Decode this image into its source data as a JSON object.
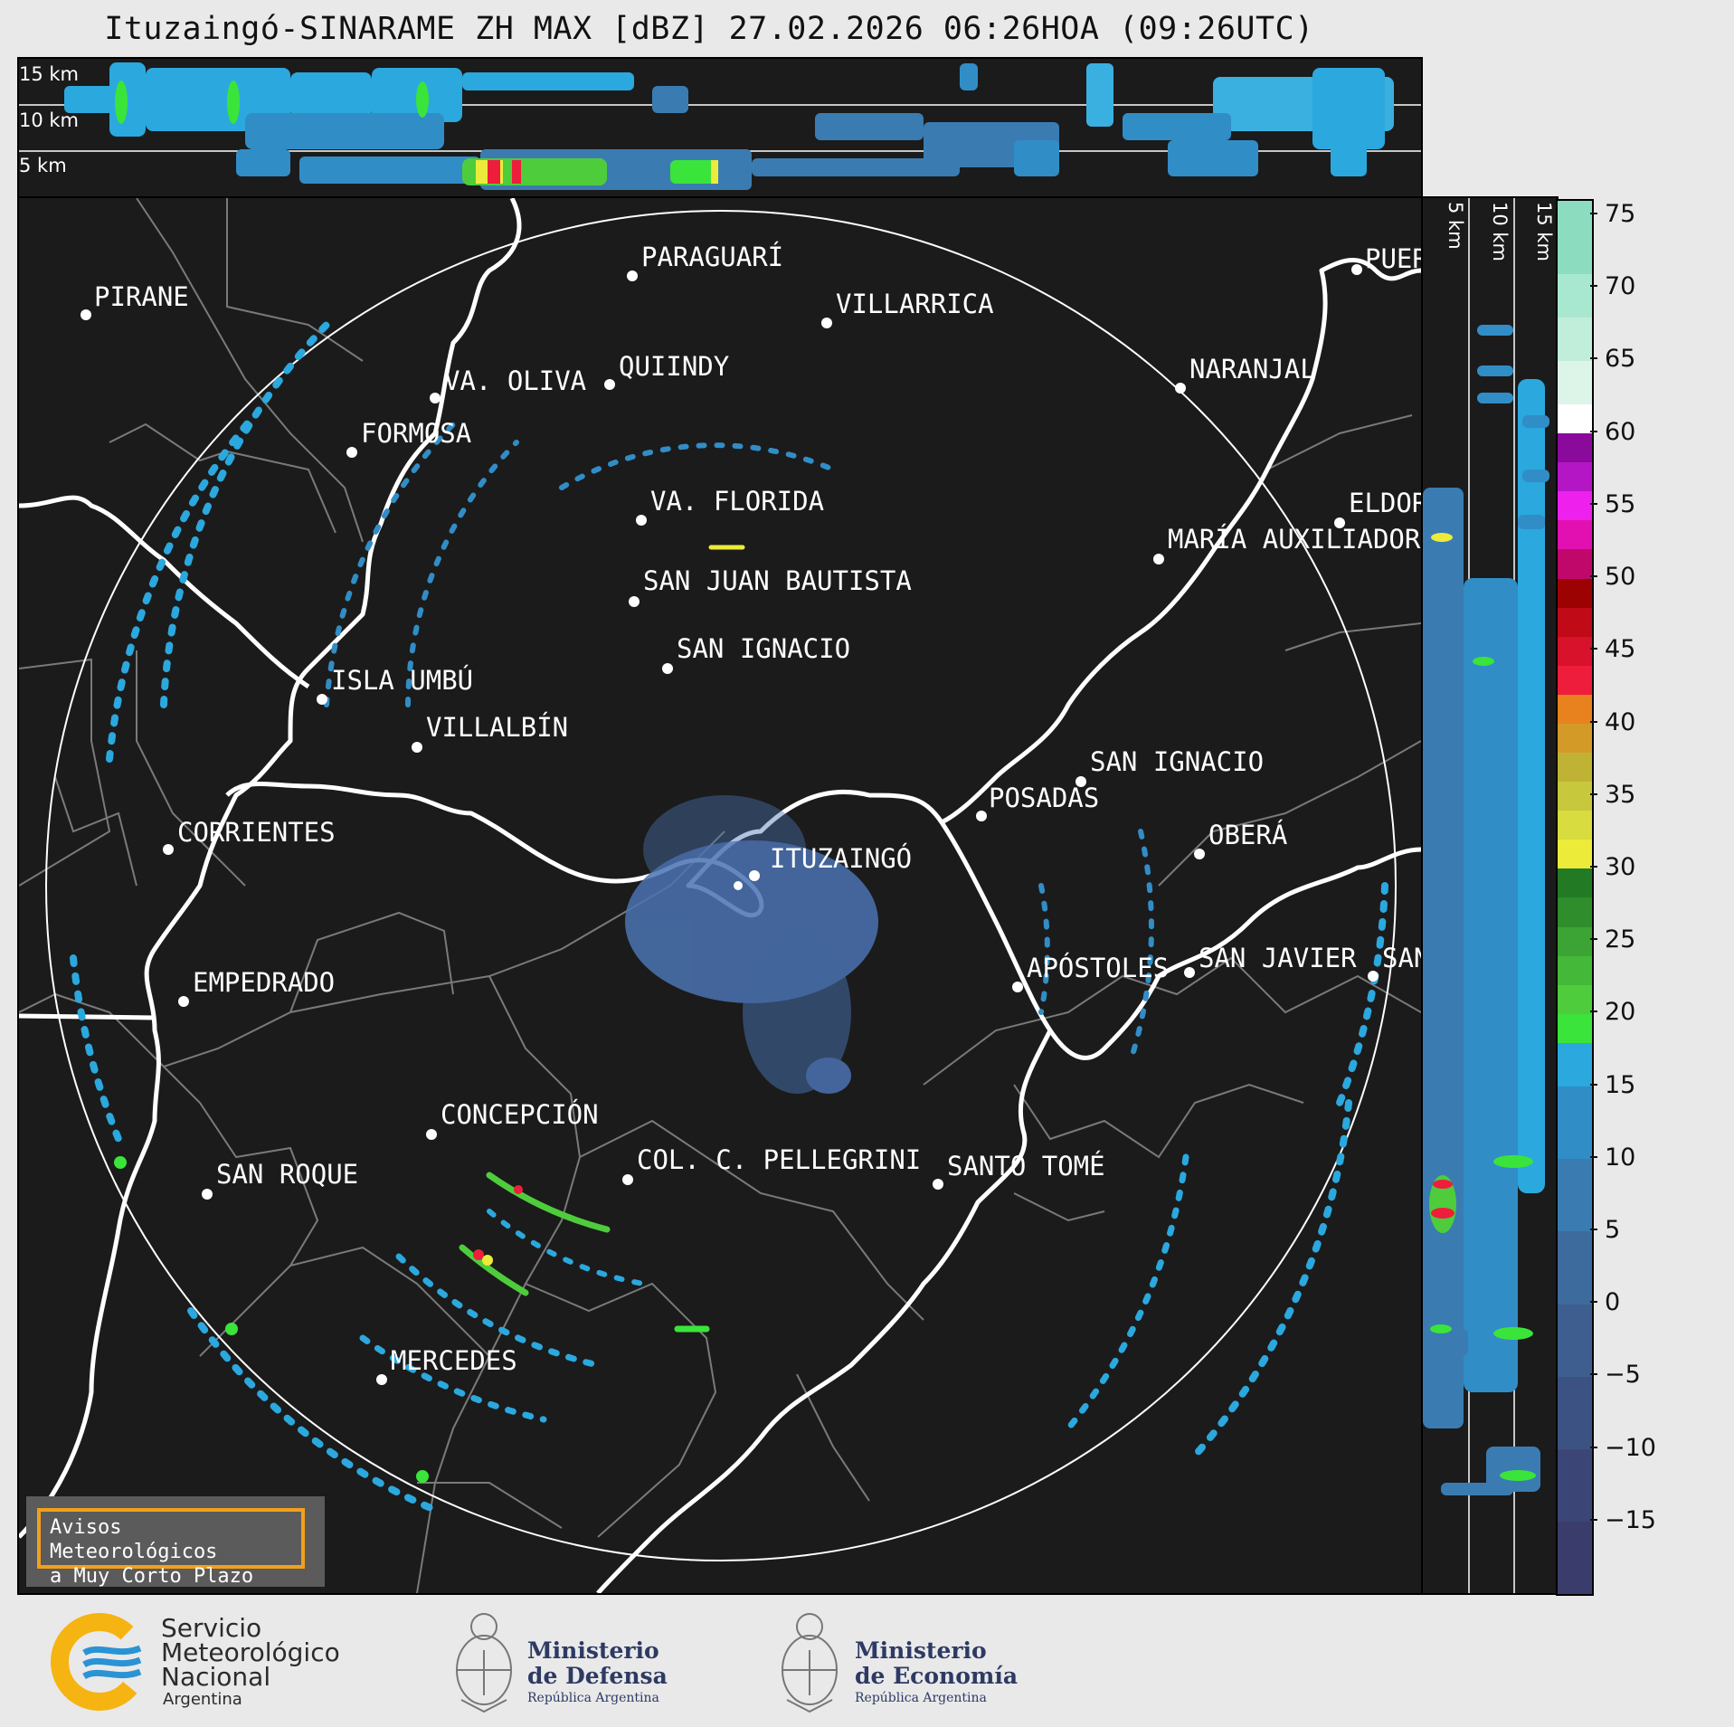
{
  "title": "Ituzaingó-SINARAME ZH MAX [dBZ] 27.02.2026 06:26HOA (09:26UTC)",
  "altitude_labels": [
    "15 km",
    "10 km",
    "5 km"
  ],
  "cities": [
    {
      "name": "PIRANE",
      "dot": [
        95,
        348
      ],
      "label": [
        104,
        314
      ]
    },
    {
      "name": "PARAGUARÍ",
      "dot": [
        699,
        305
      ],
      "label": [
        709,
        270
      ]
    },
    {
      "name": "VILLARRICA",
      "dot": [
        914,
        357
      ],
      "label": [
        924,
        322
      ]
    },
    {
      "name": "QUIINDY",
      "dot": [
        674,
        425
      ],
      "label": [
        684,
        391
      ]
    },
    {
      "name": "VA. OLIVA",
      "dot": [
        481,
        440
      ],
      "label": [
        491,
        407
      ]
    },
    {
      "name": "NARANJAL",
      "dot": [
        1305,
        429
      ],
      "label": [
        1315,
        394
      ]
    },
    {
      "name": "FORMOSA",
      "dot": [
        389,
        500
      ],
      "label": [
        399,
        465
      ]
    },
    {
      "name": "ELDORADO",
      "dot": [
        1481,
        578
      ],
      "label": [
        1491,
        542
      ]
    },
    {
      "name": "VA. FLORIDA",
      "dot": [
        709,
        575
      ],
      "label": [
        719,
        540
      ]
    },
    {
      "name": "MARÍA AUXILIADORA",
      "dot": [
        1281,
        618
      ],
      "label": [
        1291,
        582
      ]
    },
    {
      "name": "SAN JUAN BAUTISTA",
      "dot": [
        701,
        665
      ],
      "label": [
        711,
        628
      ]
    },
    {
      "name": "SAN IGNACIO",
      "dot": [
        738,
        739
      ],
      "label": [
        748,
        703
      ]
    },
    {
      "name": "ISLA UMBÚ",
      "dot": [
        356,
        773
      ],
      "label": [
        366,
        738
      ]
    },
    {
      "name": "VILLALBÍN",
      "dot": [
        461,
        826
      ],
      "label": [
        471,
        790
      ]
    },
    {
      "name": "SAN IGNACIO",
      "dot": [
        1195,
        864
      ],
      "label": [
        1205,
        828
      ]
    },
    {
      "name": "POSADAS",
      "dot": [
        1085,
        902
      ],
      "label": [
        1093,
        868
      ]
    },
    {
      "name": "CORRIENTES",
      "dot": [
        186,
        939
      ],
      "label": [
        196,
        906
      ]
    },
    {
      "name": "ITUZAINGÓ",
      "dot": [
        834,
        968
      ],
      "label": [
        851,
        935
      ]
    },
    {
      "name": "OBERÁ",
      "dot": [
        1326,
        944
      ],
      "label": [
        1336,
        909
      ]
    },
    {
      "name": "APÓSTOLES",
      "dot": [
        1125,
        1091
      ],
      "label": [
        1135,
        1056
      ]
    },
    {
      "name": "SAN JAVIER",
      "dot": [
        1315,
        1075
      ],
      "label": [
        1325,
        1045
      ]
    },
    {
      "name": "SAN",
      "dot": [
        1518,
        1079
      ],
      "label": [
        1528,
        1045
      ]
    },
    {
      "name": "EMPEDRADO",
      "dot": [
        203,
        1107
      ],
      "label": [
        213,
        1072
      ]
    },
    {
      "name": "CONCEPCIÓN",
      "dot": [
        477,
        1254
      ],
      "label": [
        487,
        1218
      ]
    },
    {
      "name": "COL. C. PELLEGRINI",
      "dot": [
        694,
        1304
      ],
      "label": [
        704,
        1268
      ]
    },
    {
      "name": "SANTO TOMÉ",
      "dot": [
        1037,
        1309
      ],
      "label": [
        1047,
        1275
      ]
    },
    {
      "name": "SAN ROQUE",
      "dot": [
        229,
        1320
      ],
      "label": [
        239,
        1284
      ]
    },
    {
      "name": "MERCEDES",
      "dot": [
        422,
        1525
      ],
      "label": [
        432,
        1490
      ]
    },
    {
      "name": "PUERTO",
      "dot": [
        1500,
        298
      ],
      "label": [
        1509,
        272
      ]
    }
  ],
  "colorbar": {
    "ticks": [
      "75",
      "70",
      "65",
      "60",
      "55",
      "50",
      "45",
      "40",
      "35",
      "30",
      "25",
      "20",
      "15",
      "10",
      "5",
      "0",
      "−5",
      "−10",
      "−15"
    ],
    "range": [
      -20,
      76
    ],
    "steps": [
      {
        "from": -20,
        "to": -15,
        "color": "#3a3c6b"
      },
      {
        "from": -15,
        "to": -10,
        "color": "#3b4677"
      },
      {
        "from": -10,
        "to": -5,
        "color": "#3c5283"
      },
      {
        "from": -5,
        "to": 0,
        "color": "#3d5e8f"
      },
      {
        "from": 0,
        "to": 5,
        "color": "#3d6b9d"
      },
      {
        "from": 5,
        "to": 10,
        "color": "#3a7cb1"
      },
      {
        "from": 10,
        "to": 15,
        "color": "#318dc6"
      },
      {
        "from": 15,
        "to": 18,
        "color": "#2ba8de"
      },
      {
        "from": 18,
        "to": 20,
        "color": "#3ae43a"
      },
      {
        "from": 20,
        "to": 22,
        "color": "#4ecc3c"
      },
      {
        "from": 22,
        "to": 24,
        "color": "#44b838"
      },
      {
        "from": 24,
        "to": 26,
        "color": "#3ca434"
      },
      {
        "from": 26,
        "to": 28,
        "color": "#2f8d2c"
      },
      {
        "from": 28,
        "to": 30,
        "color": "#237a24"
      },
      {
        "from": 30,
        "to": 32,
        "color": "#eceb3a"
      },
      {
        "from": 32,
        "to": 34,
        "color": "#d8dc3e"
      },
      {
        "from": 34,
        "to": 36,
        "color": "#c8c83c"
      },
      {
        "from": 36,
        "to": 38,
        "color": "#c0b234"
      },
      {
        "from": 38,
        "to": 40,
        "color": "#d49a28"
      },
      {
        "from": 40,
        "to": 42,
        "color": "#e8821e"
      },
      {
        "from": 42,
        "to": 44,
        "color": "#ef1d3c"
      },
      {
        "from": 44,
        "to": 46,
        "color": "#d8122a"
      },
      {
        "from": 46,
        "to": 48,
        "color": "#c00a18"
      },
      {
        "from": 48,
        "to": 50,
        "color": "#9c0202"
      },
      {
        "from": 50,
        "to": 52,
        "color": "#c0086a"
      },
      {
        "from": 52,
        "to": 54,
        "color": "#e210b0"
      },
      {
        "from": 54,
        "to": 56,
        "color": "#ee20ee"
      },
      {
        "from": 56,
        "to": 58,
        "color": "#b416c6"
      },
      {
        "from": 58,
        "to": 60,
        "color": "#8a0a9c"
      },
      {
        "from": 60,
        "to": 62,
        "color": "#ffffff"
      },
      {
        "from": 62,
        "to": 65,
        "color": "#dcf5e8"
      },
      {
        "from": 65,
        "to": 68,
        "color": "#c0eedb"
      },
      {
        "from": 68,
        "to": 71,
        "color": "#a8e8d0"
      },
      {
        "from": 71,
        "to": 76,
        "color": "#8cdcc0"
      }
    ]
  },
  "warning_box": {
    "line1": "Avisos Meteorológicos",
    "line2": "a Muy Corto Plazo"
  },
  "footer": {
    "smn": {
      "line1": "Servicio",
      "line2": "Meteorológico",
      "line3": "Nacional",
      "line4": "Argentina"
    },
    "defensa": {
      "line1": "Ministerio",
      "line2": "de Defensa",
      "line3": "República Argentina"
    },
    "economia": {
      "line1": "Ministerio",
      "line2": "de Economía",
      "line3": "República Argentina"
    }
  },
  "colors": {
    "background": "#1b1b1b",
    "range_ring": "#ffffff",
    "border_line": "#7a7a7a",
    "river": "#ffffff",
    "warning_border": "#f2a01c",
    "smn_blue": "#2a93d5",
    "smn_yellow": "#f6b412"
  }
}
